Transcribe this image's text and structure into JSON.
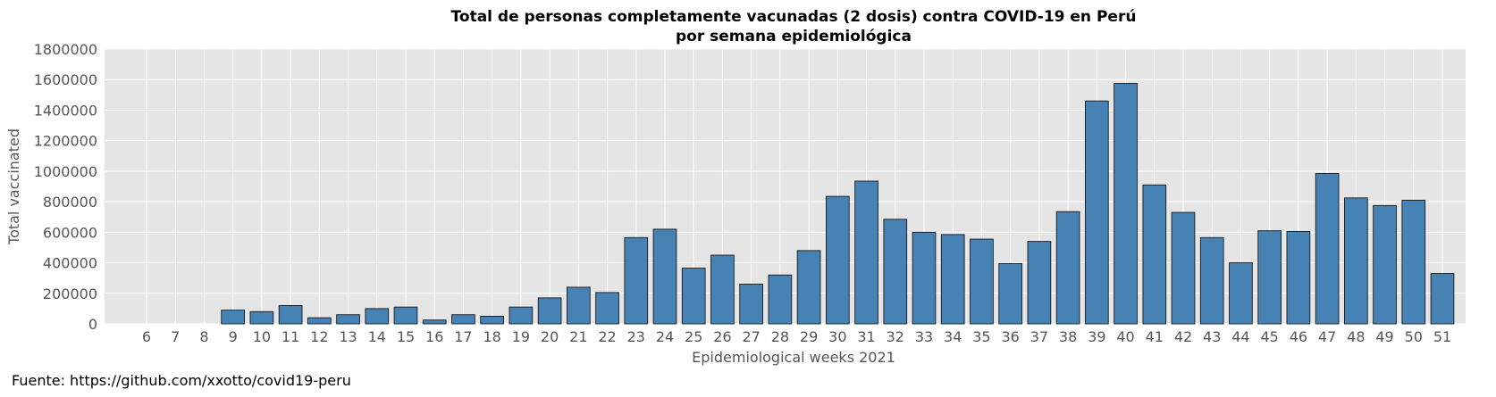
{
  "chart_data": {
    "type": "bar",
    "title": "Total de personas completamente vacunadas (2 dosis) contra COVID-19 en Perú",
    "subtitle": "por semana epidemiológica",
    "xlabel": "Epidemiological weeks 2021",
    "ylabel": "Total vaccinated",
    "ylim": [
      0,
      1800000
    ],
    "yticks": [
      "0",
      "200000",
      "400000",
      "600000",
      "800000",
      "1000000",
      "1200000",
      "1400000",
      "1600000",
      "1800000"
    ],
    "grid": true,
    "bar_color": "#4682b4",
    "bar_edge_color": "#1a1a1a",
    "background_color": "#e5e5e5",
    "categories": [
      "6",
      "7",
      "8",
      "9",
      "10",
      "11",
      "12",
      "13",
      "14",
      "15",
      "16",
      "17",
      "18",
      "19",
      "20",
      "21",
      "22",
      "23",
      "24",
      "25",
      "26",
      "27",
      "28",
      "29",
      "30",
      "31",
      "32",
      "33",
      "34",
      "35",
      "36",
      "37",
      "38",
      "39",
      "40",
      "41",
      "42",
      "43",
      "44",
      "45",
      "46",
      "47",
      "48",
      "49",
      "50",
      "51"
    ],
    "values": [
      0,
      0,
      0,
      90000,
      80000,
      120000,
      40000,
      60000,
      100000,
      110000,
      25000,
      60000,
      50000,
      110000,
      170000,
      240000,
      205000,
      565000,
      620000,
      365000,
      450000,
      260000,
      320000,
      480000,
      835000,
      935000,
      685000,
      600000,
      585000,
      555000,
      395000,
      540000,
      735000,
      1460000,
      1575000,
      910000,
      730000,
      565000,
      400000,
      610000,
      605000,
      985000,
      825000,
      775000,
      810000,
      330000
    ]
  },
  "footer": {
    "source": "Fuente: https://github.com/xxotto/covid19-peru"
  }
}
